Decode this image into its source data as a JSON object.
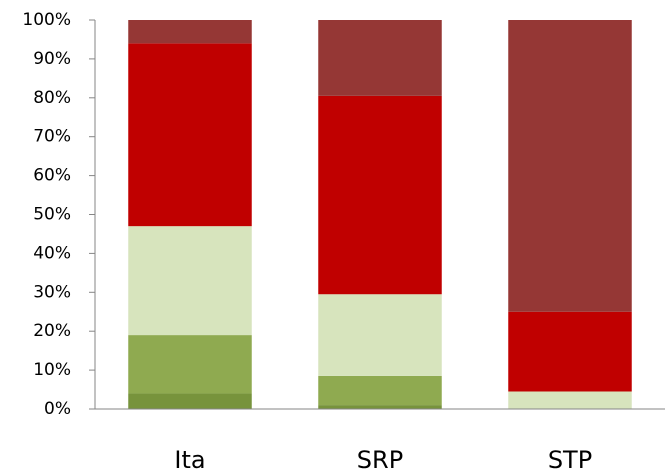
{
  "chart_data": {
    "type": "stacked_bar",
    "categories": [
      "Ita",
      "SRP",
      "STP"
    ],
    "series": [
      {
        "color": "#77933c",
        "values": [
          4,
          1,
          0
        ]
      },
      {
        "color": "#8faa50",
        "values": [
          15,
          7.5,
          0
        ]
      },
      {
        "color": "#d7e4bd",
        "values": [
          28,
          21,
          4.5
        ]
      },
      {
        "color": "#c00000",
        "values": [
          47,
          51,
          20.5
        ]
      },
      {
        "color": "#953735",
        "values": [
          6,
          19.5,
          75
        ]
      }
    ],
    "ylim": [
      0,
      100
    ],
    "yticks": [
      {
        "value": 0,
        "label": "0%"
      },
      {
        "value": 10,
        "label": "10%"
      },
      {
        "value": 20,
        "label": "20%"
      },
      {
        "value": 30,
        "label": "30%"
      },
      {
        "value": 40,
        "label": "40%"
      },
      {
        "value": 50,
        "label": "50%"
      },
      {
        "value": 60,
        "label": "60%"
      },
      {
        "value": 70,
        "label": "70%"
      },
      {
        "value": 80,
        "label": "80%"
      },
      {
        "value": 90,
        "label": "90%"
      },
      {
        "value": 100,
        "label": "100%"
      }
    ]
  }
}
